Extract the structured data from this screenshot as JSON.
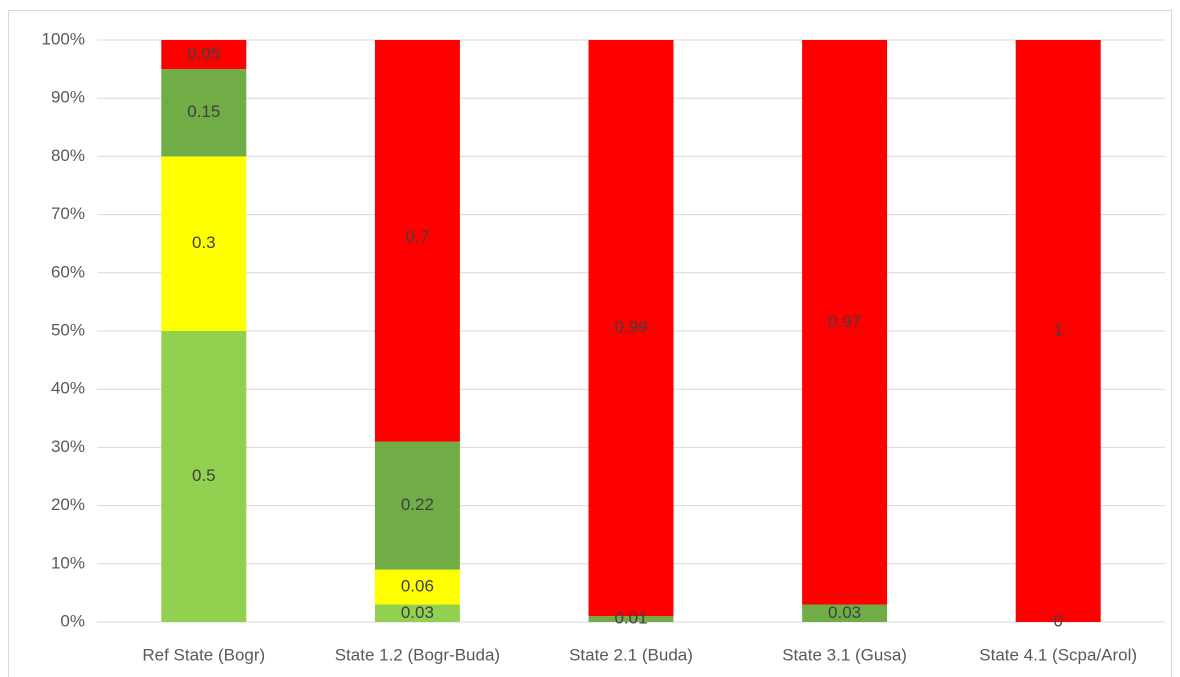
{
  "chart_data": {
    "type": "stacked_bar_100",
    "categories": [
      "Ref State (Bogr)",
      "State 1.2 (Bogr-Buda)",
      "State 2.1 (Buda)",
      "State 3.1 (Gusa)",
      "State 4.1 (Scpa/Arol)"
    ],
    "series": [
      {
        "color": "#92d050",
        "values": [
          0.5,
          0.03,
          null,
          null,
          null
        ]
      },
      {
        "color": "#ffff00",
        "values": [
          0.3,
          0.06,
          null,
          null,
          null
        ]
      },
      {
        "color": "#70ad47",
        "values": [
          0.15,
          0.22,
          0.01,
          0.03,
          0
        ]
      },
      {
        "color": "#ff0000",
        "values": [
          0.05,
          0.7,
          0.99,
          0.97,
          1
        ]
      }
    ],
    "ylim": [
      0,
      1
    ],
    "yticks": [
      {
        "value": 0,
        "label": "0%"
      },
      {
        "value": 0.1,
        "label": "10%"
      },
      {
        "value": 0.2,
        "label": "20%"
      },
      {
        "value": 0.3,
        "label": "30%"
      },
      {
        "value": 0.4,
        "label": "40%"
      },
      {
        "value": 0.5,
        "label": "50%"
      },
      {
        "value": 0.6,
        "label": "60%"
      },
      {
        "value": 0.7,
        "label": "70%"
      },
      {
        "value": 0.8,
        "label": "80%"
      },
      {
        "value": 0.9,
        "label": "90%"
      },
      {
        "value": 1,
        "label": "100%"
      }
    ],
    "grid": true
  }
}
